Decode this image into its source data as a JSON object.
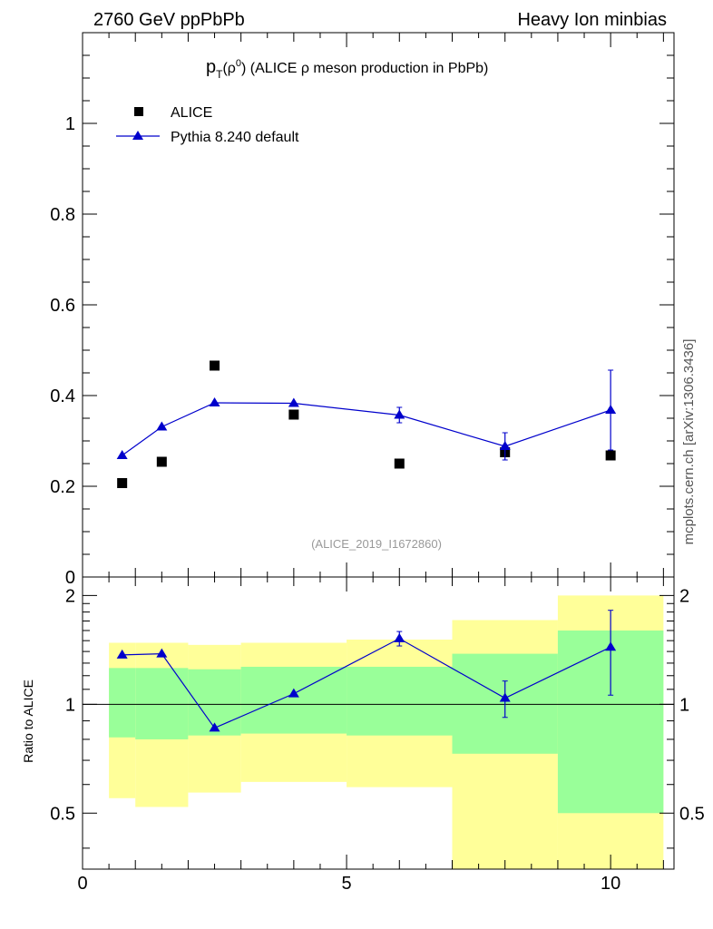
{
  "header": {
    "left": "2760 GeV ppPbPb",
    "right": "Heavy Ion minbias"
  },
  "side_label": "mcplots.cern.ch [arXiv:1306.3436]",
  "chart_data": [
    {
      "type": "scatter",
      "title_p": "p",
      "title_sub": "T",
      "title_rho": "(ρ",
      "title_sup": "0",
      "title_rest": ") (ALICE ρ meson production in PbPb)",
      "watermark": "(ALICE_2019_I1672860)",
      "xlim": [
        0,
        11.2
      ],
      "ylim": [
        0,
        1.2
      ],
      "yticks": [
        0,
        0.2,
        0.4,
        0.6,
        0.8,
        1
      ],
      "ytick_labels": [
        "0",
        "0.2",
        "0.4",
        "0.6",
        "0.8",
        "1"
      ],
      "series": [
        {
          "name": "ALICE",
          "marker": "square",
          "color": "#000000",
          "x": [
            0.75,
            1.5,
            2.5,
            4.0,
            6.0,
            8.0,
            10.0
          ],
          "y": [
            0.207,
            0.254,
            0.466,
            0.358,
            0.25,
            0.275,
            0.268
          ]
        },
        {
          "name": "Pythia 8.240 default",
          "marker": "triangle",
          "color": "#0000cc",
          "x": [
            0.75,
            1.5,
            2.5,
            4.0,
            6.0,
            8.0,
            10.0
          ],
          "y": [
            0.268,
            0.331,
            0.384,
            0.383,
            0.357,
            0.288,
            0.368
          ],
          "yerr": [
            0.0,
            0.0,
            0.0,
            0.0,
            0.017,
            0.03,
            0.088
          ]
        }
      ]
    },
    {
      "type": "scatter",
      "ylabel": "Ratio to ALICE",
      "xlim": [
        0,
        11.2
      ],
      "ylim": [
        0.35,
        2.25
      ],
      "xticks": [
        0,
        5,
        10
      ],
      "xtick_labels": [
        "0",
        "5",
        "10"
      ],
      "yticks": [
        0.5,
        1,
        2
      ],
      "ytick_labels": [
        "0.5",
        "1",
        "2"
      ],
      "bands": [
        {
          "x0": 0.5,
          "x1": 1.0,
          "green": [
            0.81,
            1.26
          ],
          "yellow": [
            0.55,
            1.48
          ]
        },
        {
          "x0": 1.0,
          "x1": 2.0,
          "green": [
            0.8,
            1.26
          ],
          "yellow": [
            0.52,
            1.48
          ]
        },
        {
          "x0": 2.0,
          "x1": 3.0,
          "green": [
            0.82,
            1.25
          ],
          "yellow": [
            0.57,
            1.46
          ]
        },
        {
          "x0": 3.0,
          "x1": 5.0,
          "green": [
            0.83,
            1.27
          ],
          "yellow": [
            0.61,
            1.48
          ]
        },
        {
          "x0": 5.0,
          "x1": 7.0,
          "green": [
            0.82,
            1.27
          ],
          "yellow": [
            0.59,
            1.51
          ]
        },
        {
          "x0": 7.0,
          "x1": 9.0,
          "green": [
            0.73,
            1.38
          ],
          "yellow": [
            0.35,
            1.71
          ]
        },
        {
          "x0": 9.0,
          "x1": 11.0,
          "green": [
            0.5,
            1.6
          ],
          "yellow": [
            0.35,
            2.0
          ]
        }
      ],
      "series": [
        {
          "name": "Pythia 8.240 default",
          "color": "#0000cc",
          "x": [
            0.75,
            1.5,
            2.5,
            4.0,
            6.0,
            8.0,
            10.0
          ],
          "y": [
            1.37,
            1.38,
            0.86,
            1.07,
            1.52,
            1.04,
            1.44
          ],
          "yerr": [
            0.0,
            0.0,
            0.0,
            0.0,
            0.07,
            0.12,
            0.38
          ]
        }
      ]
    }
  ]
}
